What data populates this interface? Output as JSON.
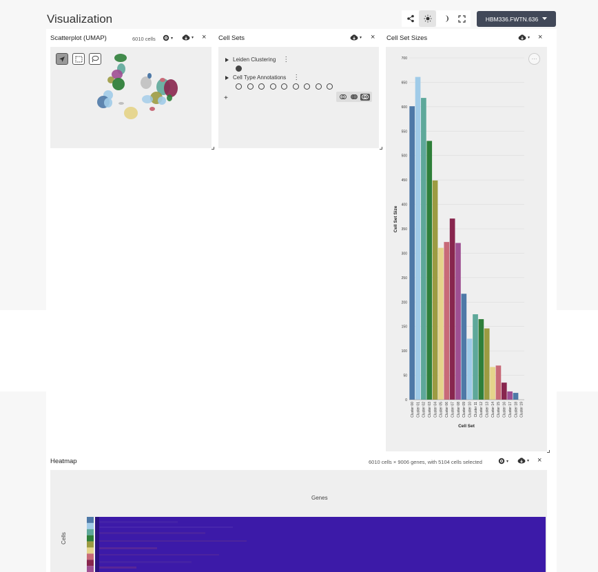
{
  "app": {
    "title": "Visualization",
    "dataset": "HBM336.FWTN.636"
  },
  "toolbar": {
    "share": "share-icon",
    "light": "sun-icon",
    "dark": "moon-icon",
    "fullscreen": "expand-icon"
  },
  "scatterplot": {
    "title": "Scatterplot (UMAP)",
    "cells": "6010 cells"
  },
  "cellsets": {
    "title": "Cell Sets",
    "leiden": "Leiden Clustering",
    "annotations": "Cell Type Annotations",
    "add": "+"
  },
  "sizes": {
    "title": "Cell Set Sizes",
    "menu": "···"
  },
  "heatmap": {
    "title": "Heatmap",
    "meta": "6010 cells × 9006 genes, with 5104 cells selected",
    "genes_label": "Genes",
    "cells_label": "Cells"
  },
  "chart_data": {
    "type": "bar",
    "xlabel": "Cell Set",
    "ylabel": "Cell Set Size",
    "ylim": [
      0,
      700
    ],
    "yticks": [
      0,
      50,
      100,
      150,
      200,
      250,
      300,
      350,
      400,
      450,
      500,
      550,
      600,
      650,
      700
    ],
    "categories": [
      "Cluster 00",
      "Cluster 01",
      "Cluster 02",
      "Cluster 03",
      "Cluster 04",
      "Cluster 05",
      "Cluster 06",
      "Cluster 07",
      "Cluster 08",
      "Cluster 09",
      "Cluster 10",
      "Cluster 11",
      "Cluster 12",
      "Cluster 13",
      "Cluster 14",
      "Cluster 15",
      "Cluster 16",
      "Cluster 17",
      "Cluster 18",
      "Cluster 19"
    ],
    "values": [
      601,
      661,
      618,
      530,
      449,
      311,
      323,
      371,
      321,
      217,
      125,
      175,
      165,
      146,
      67,
      70,
      35,
      17,
      14,
      0
    ],
    "colors": [
      "#4e79a7",
      "#a0cbe8",
      "#5ea89a",
      "#2f7f3a",
      "#9c9b42",
      "#e5d48b",
      "#c86a78",
      "#88264e",
      "#9e4f92",
      "#4e79a7",
      "#a0cbe8",
      "#5ea89a",
      "#2f7f3a",
      "#9c9b42",
      "#e5d48b",
      "#c86a78",
      "#88264e",
      "#9e4f92",
      "#4e79a7",
      "#a0cbe8"
    ],
    "grid": true
  },
  "cluster_colors": [
    "#4e79a7",
    "#a0cbe8",
    "#5ea89a",
    "#2f7f3a",
    "#9c9b42",
    "#e5d48b",
    "#c86a78",
    "#88264e",
    "#9e4f92"
  ]
}
